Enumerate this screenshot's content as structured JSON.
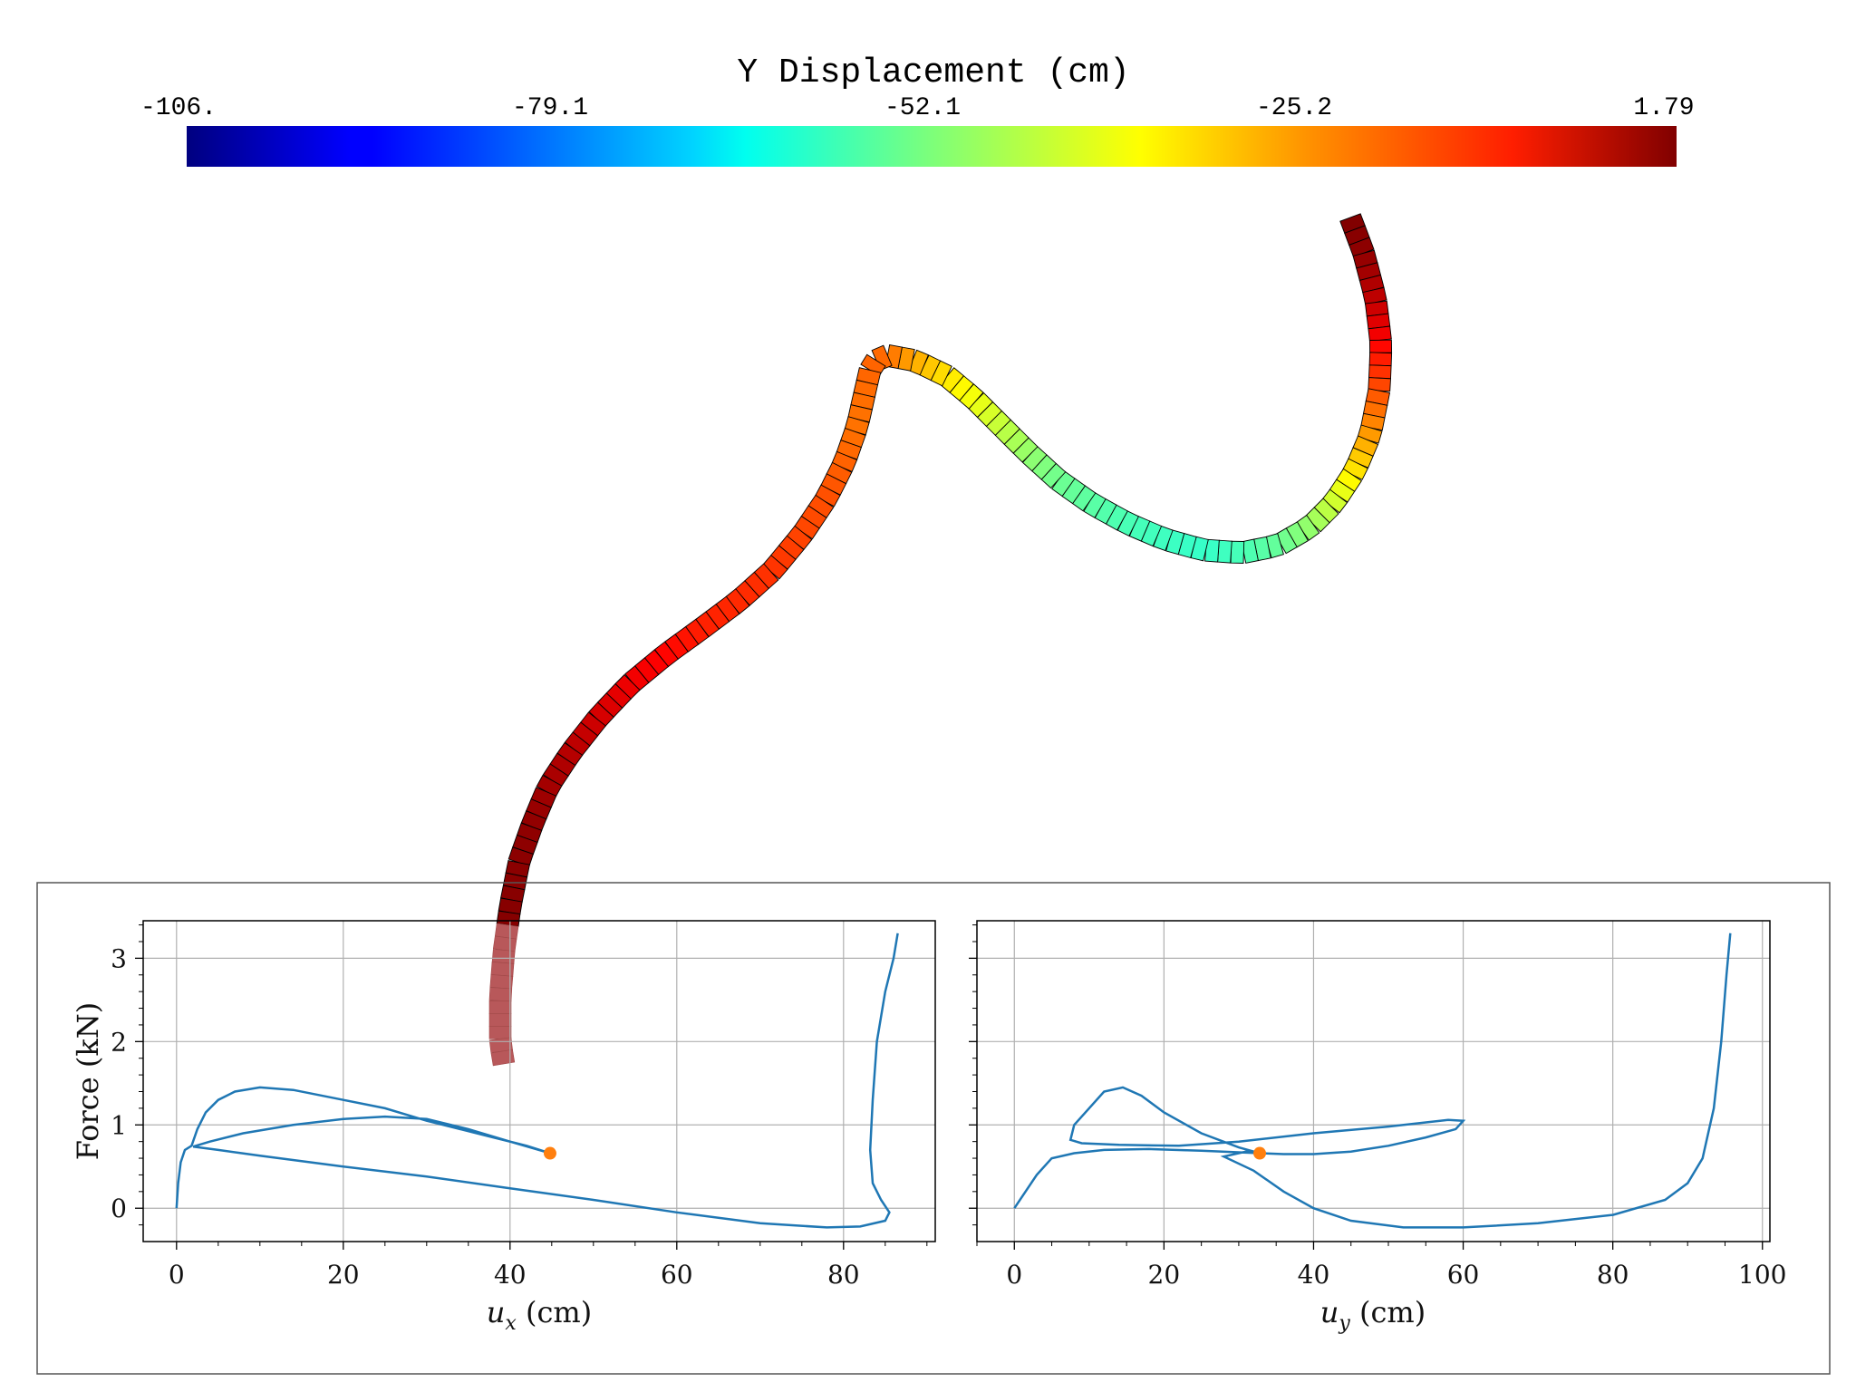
{
  "colorbar": {
    "title": "Y Displacement (cm)",
    "min": -106,
    "max": 1.79,
    "ticks": [
      "-106.",
      "-79.1",
      "-52.1",
      "-25.2",
      "1.79"
    ],
    "colormap": "jet"
  },
  "beam": {
    "centerline": [
      [
        1490,
        240
      ],
      [
        1505,
        280
      ],
      [
        1518,
        330
      ],
      [
        1524,
        380
      ],
      [
        1522,
        430
      ],
      [
        1512,
        480
      ],
      [
        1495,
        520
      ],
      [
        1472,
        555
      ],
      [
        1445,
        582
      ],
      [
        1410,
        602
      ],
      [
        1370,
        610
      ],
      [
        1328,
        607
      ],
      [
        1285,
        595
      ],
      [
        1245,
        578
      ],
      [
        1205,
        556
      ],
      [
        1168,
        530
      ],
      [
        1135,
        500
      ],
      [
        1105,
        470
      ],
      [
        1075,
        440
      ],
      [
        1045,
        415
      ],
      [
        1010,
        398
      ],
      [
        978,
        392
      ],
      [
        962,
        400
      ],
      [
        955,
        430
      ],
      [
        946,
        470
      ],
      [
        932,
        510
      ],
      [
        912,
        550
      ],
      [
        885,
        590
      ],
      [
        852,
        630
      ],
      [
        815,
        663
      ],
      [
        775,
        693
      ],
      [
        735,
        722
      ],
      [
        695,
        755
      ],
      [
        660,
        792
      ],
      [
        630,
        830
      ],
      [
        605,
        868
      ],
      [
        588,
        908
      ],
      [
        573,
        950
      ],
      [
        563,
        1000
      ],
      [
        556,
        1050
      ],
      [
        552,
        1100
      ],
      [
        552,
        1150
      ],
      [
        557,
        1180
      ]
    ],
    "displacement": [
      1.79,
      0,
      -5,
      -12,
      -20,
      -28,
      -36,
      -44,
      -50,
      -55,
      -58,
      -60,
      -59,
      -58,
      -56,
      -54,
      -50,
      -45,
      -40,
      -36,
      -30,
      -23,
      -22,
      -23,
      -24,
      -22,
      -20,
      -19,
      -17,
      -16,
      -15,
      -12,
      -10,
      -7,
      -4,
      -2,
      0,
      0.5,
      1.0,
      1.5,
      1.7,
      1.79
    ],
    "initial_segment_color": "#b8585a",
    "outline_color": "#000000"
  },
  "chart_data": [
    {
      "type": "line",
      "xlabel": "u",
      "xlabel_sub": "x",
      "xlabel_unit": " (cm)",
      "ylabel": "Force (kN)",
      "xlim": [
        -4,
        91
      ],
      "ylim": [
        -0.4,
        3.45
      ],
      "xticks": [
        0,
        20,
        40,
        60,
        80
      ],
      "yticks": [
        0,
        1,
        2,
        3
      ],
      "grid": true,
      "series_color": "#1f77b4",
      "x": [
        0,
        0.2,
        0.5,
        1.0,
        1.8,
        2.5,
        3.5,
        5,
        7,
        10,
        14,
        20,
        25,
        30,
        34,
        38,
        42,
        44.8,
        44.8,
        40,
        35,
        30,
        25,
        20,
        14,
        8,
        4,
        2,
        5,
        10,
        20,
        30,
        40,
        50,
        60,
        70,
        78,
        82,
        85,
        85.5,
        84.5,
        83.5,
        83.2,
        83.5,
        84,
        85,
        86,
        86.5
      ],
      "y": [
        0,
        0.3,
        0.55,
        0.7,
        0.75,
        0.95,
        1.15,
        1.3,
        1.4,
        1.45,
        1.42,
        1.3,
        1.2,
        1.05,
        0.95,
        0.85,
        0.75,
        0.66,
        0.66,
        0.8,
        0.95,
        1.07,
        1.1,
        1.07,
        1.0,
        0.9,
        0.8,
        0.74,
        0.7,
        0.63,
        0.5,
        0.38,
        0.24,
        0.1,
        -0.05,
        -0.18,
        -0.23,
        -0.22,
        -0.15,
        -0.05,
        0.1,
        0.3,
        0.7,
        1.3,
        2.0,
        2.6,
        3.0,
        3.3
      ],
      "marker": {
        "x": 44.8,
        "y": 0.66,
        "color": "#ff7f0e"
      }
    },
    {
      "type": "line",
      "xlabel": "u",
      "xlabel_sub": "y",
      "xlabel_unit": " (cm)",
      "ylabel": "",
      "xlim": [
        -5,
        101
      ],
      "ylim": [
        -0.4,
        3.45
      ],
      "xticks": [
        0,
        20,
        40,
        60,
        80,
        100
      ],
      "yticks": [
        0,
        1,
        2,
        3
      ],
      "grid": true,
      "series_color": "#1f77b4",
      "x": [
        32.8,
        30,
        25,
        20,
        17,
        14.5,
        12,
        10,
        8,
        7.5,
        9,
        14,
        22,
        30,
        40,
        50,
        58,
        60,
        59,
        55,
        50,
        45,
        40,
        36,
        32.8,
        32.8,
        31,
        28,
        32,
        36,
        40,
        45,
        52,
        60,
        70,
        80,
        87,
        90,
        92,
        93.5,
        94.5,
        95.2,
        95.7
      ],
      "y": [
        0.66,
        0.73,
        0.9,
        1.15,
        1.35,
        1.45,
        1.4,
        1.2,
        1.0,
        0.82,
        0.78,
        0.76,
        0.75,
        0.8,
        0.9,
        0.98,
        1.06,
        1.05,
        0.95,
        0.85,
        0.75,
        0.68,
        0.65,
        0.65,
        0.66,
        0.66,
        0.68,
        0.62,
        0.45,
        0.2,
        0.0,
        -0.15,
        -0.23,
        -0.23,
        -0.18,
        -0.08,
        0.1,
        0.3,
        0.6,
        1.2,
        2.0,
        2.8,
        3.3
      ],
      "x_start": [
        0,
        3,
        5,
        8,
        12,
        18,
        25,
        32.8
      ],
      "y_start": [
        0,
        0.4,
        0.6,
        0.66,
        0.7,
        0.71,
        0.69,
        0.66
      ],
      "marker": {
        "x": 32.8,
        "y": 0.66,
        "color": "#ff7f0e"
      }
    }
  ]
}
